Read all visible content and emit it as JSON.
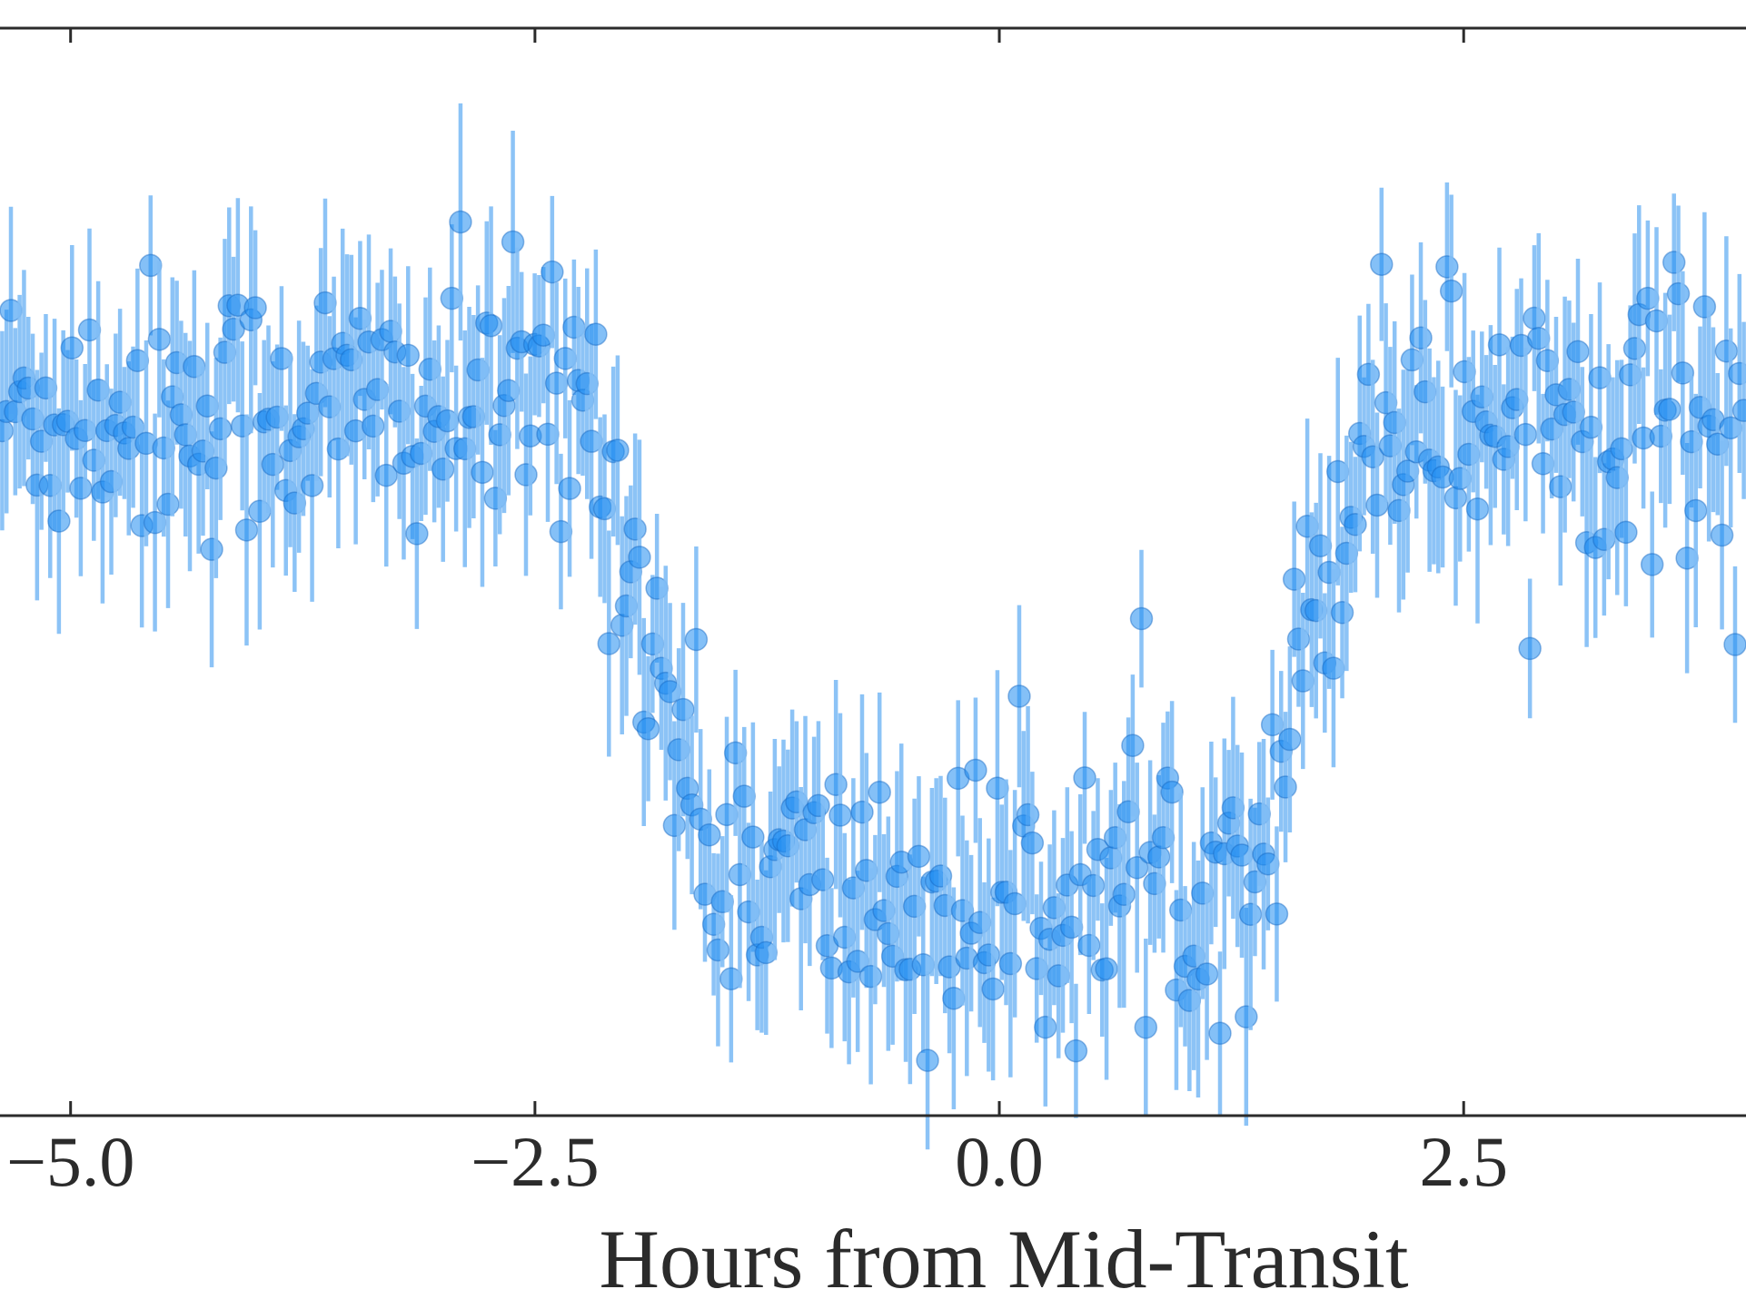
{
  "chart_data": {
    "type": "scatter",
    "title": "",
    "xlabel": "Hours from Mid-Transit",
    "ylabel": "",
    "xlim": [
      -5.38,
      4.02
    ],
    "ylim": [
      -1.0,
      1.0
    ],
    "x_ticks": [
      -5.0,
      -2.5,
      0.0,
      2.5
    ],
    "x_tick_labels": [
      "−5.0",
      "−2.5",
      "0.0",
      "2.5"
    ],
    "grid": false,
    "legend": "none",
    "marker_color": "#1f8cf0",
    "errorbar_color": "#7fbcf5",
    "transit": {
      "t_start": -2.2,
      "t_end": 2.0,
      "ingress": 0.6,
      "baseline": 0.3,
      "depth": 0.92
    },
    "error_range": [
      0.12,
      0.22
    ],
    "n_points": 400
  }
}
